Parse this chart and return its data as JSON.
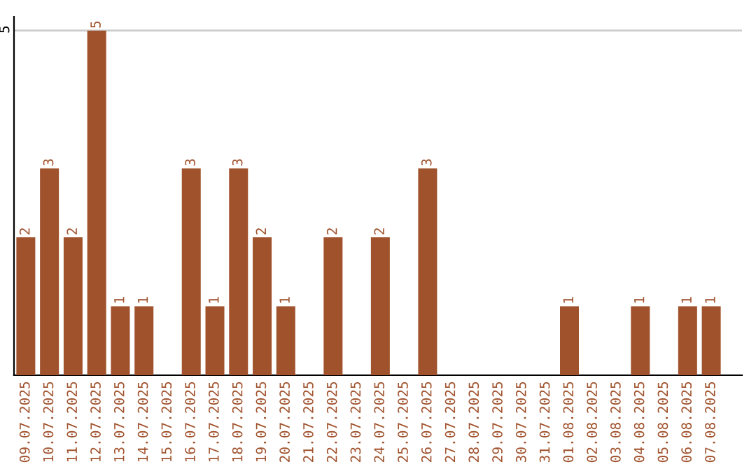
{
  "chart_data": {
    "type": "bar",
    "categories": [
      "09.07.2025",
      "10.07.2025",
      "11.07.2025",
      "12.07.2025",
      "13.07.2025",
      "14.07.2025",
      "15.07.2025",
      "16.07.2025",
      "17.07.2025",
      "18.07.2025",
      "19.07.2025",
      "20.07.2025",
      "21.07.2025",
      "22.07.2025",
      "23.07.2025",
      "24.07.2025",
      "25.07.2025",
      "26.07.2025",
      "27.07.2025",
      "28.07.2025",
      "29.07.2025",
      "30.07.2025",
      "31.07.2025",
      "01.08.2025",
      "02.08.2025",
      "03.08.2025",
      "04.08.2025",
      "05.08.2025",
      "06.08.2025",
      "07.08.2025"
    ],
    "values": [
      2,
      3,
      2,
      5,
      1,
      1,
      0,
      3,
      1,
      3,
      2,
      1,
      0,
      2,
      0,
      2,
      0,
      3,
      0,
      0,
      0,
      0,
      0,
      1,
      0,
      0,
      1,
      0,
      1,
      1
    ],
    "value_labels": [
      "2",
      "3",
      "2",
      "5",
      "1",
      "1",
      null,
      "3",
      "1",
      "3",
      "2",
      "1",
      null,
      "2",
      null,
      "2",
      null,
      "3",
      null,
      null,
      null,
      null,
      null,
      "1",
      null,
      null,
      "1",
      null,
      "1",
      "1"
    ],
    "color": "#a0522d",
    "ylim": [
      0,
      5.2
    ],
    "yticks": [
      5
    ],
    "grid": "y",
    "legend": false
  }
}
